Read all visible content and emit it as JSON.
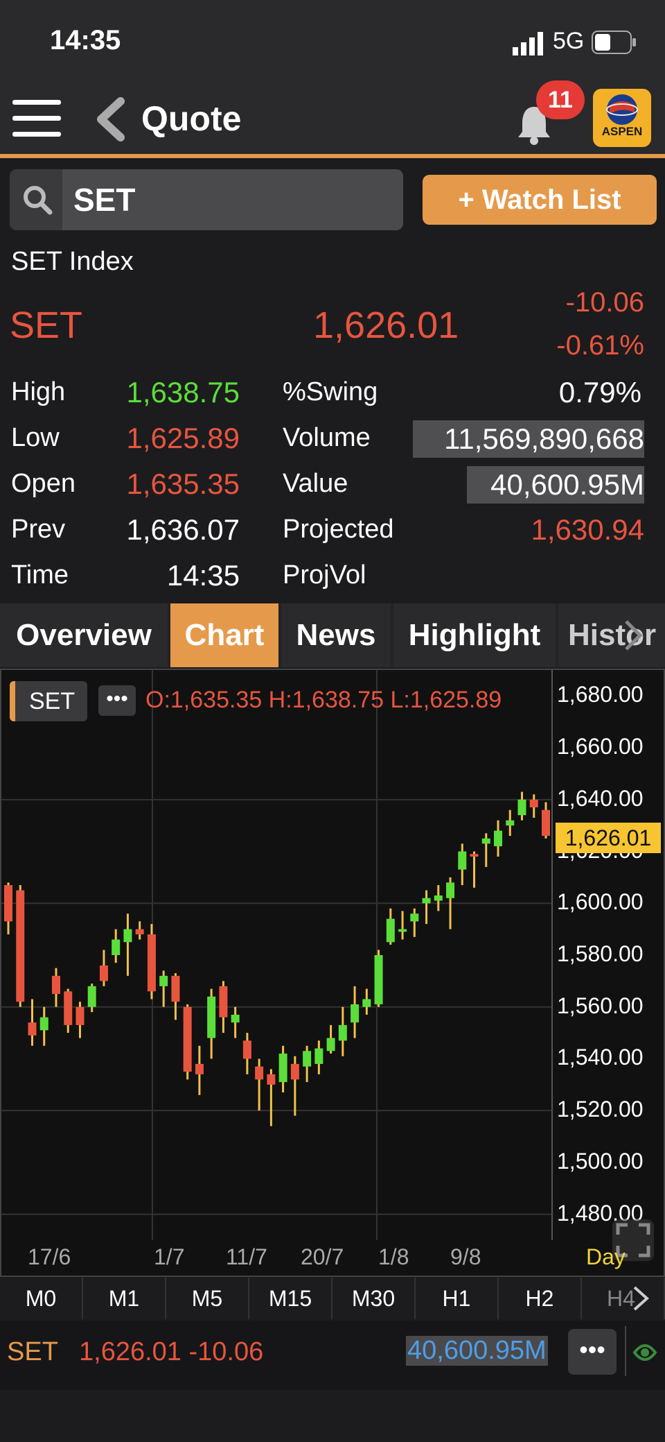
{
  "status_bar": {
    "time": "14:35",
    "network": "5G"
  },
  "header": {
    "title": "Quote",
    "notification_count": "11",
    "brand": "ASPEN"
  },
  "search": {
    "value": "SET"
  },
  "watchlist_button": "+ Watch List",
  "quote": {
    "name": "SET Index",
    "symbol": "SET",
    "last": "1,626.01",
    "change": "-10.06",
    "change_pct": "-0.61%",
    "rows": [
      {
        "label": "High",
        "value": "1,638.75",
        "label2": "%Swing",
        "value2": "0.79%"
      },
      {
        "label": "Low",
        "value": "1,625.89",
        "label2": "Volume",
        "value2": "11,569,890,668"
      },
      {
        "label": "Open",
        "value": "1,635.35",
        "label2": "Value",
        "value2": "40,600.95M"
      },
      {
        "label": "Prev",
        "value": "1,636.07",
        "label2": "Projected",
        "value2": "1,630.94"
      },
      {
        "label": "Time",
        "value": "14:35",
        "label2": "ProjVol",
        "value2": ""
      }
    ]
  },
  "tabs": [
    {
      "label": "Overview",
      "active": false
    },
    {
      "label": "Chart",
      "active": true
    },
    {
      "label": "News",
      "active": false
    },
    {
      "label": "Highlight",
      "active": false
    },
    {
      "label": "Histor",
      "active": false
    }
  ],
  "chart": {
    "symbol_chip": "SET",
    "ohlc_text": "O:1,635.35  H:1,638.75  L:1,625.89",
    "last_price_label": "1,626.01",
    "interval_label": "Day"
  },
  "chart_data": {
    "type": "candlestick",
    "yticks": [
      "1,680.00",
      "1,660.00",
      "1,640.00",
      "1,620.00",
      "1,600.00",
      "1,580.00",
      "1,560.00",
      "1,540.00",
      "1,520.00",
      "1,500.00",
      "1,480.00"
    ],
    "ylim": [
      1470,
      1690
    ],
    "xticks": [
      "17/6",
      "1/7",
      "11/7",
      "20/7",
      "1/8",
      "9/8"
    ],
    "candles": [
      [
        1607,
        1593,
        1608,
        1588
      ],
      [
        1605,
        1562,
        1607,
        1560
      ],
      [
        1554,
        1549,
        1563,
        1545
      ],
      [
        1551,
        1556,
        1560,
        1545
      ],
      [
        1572,
        1565,
        1575,
        1560
      ],
      [
        1566,
        1553,
        1567,
        1550
      ],
      [
        1560,
        1553,
        1562,
        1548
      ],
      [
        1560,
        1568,
        1569,
        1558
      ],
      [
        1576,
        1570,
        1582,
        1568
      ],
      [
        1580,
        1586,
        1590,
        1577
      ],
      [
        1585,
        1590,
        1596,
        1572
      ],
      [
        1590,
        1588,
        1593,
        1586
      ],
      [
        1588,
        1566,
        1592,
        1563
      ],
      [
        1568,
        1572,
        1574,
        1560
      ],
      [
        1572,
        1562,
        1573,
        1555
      ],
      [
        1560,
        1535,
        1561,
        1532
      ],
      [
        1538,
        1534,
        1545,
        1526
      ],
      [
        1548,
        1564,
        1567,
        1540
      ],
      [
        1568,
        1556,
        1570,
        1550
      ],
      [
        1554,
        1557,
        1560,
        1548
      ],
      [
        1547,
        1540,
        1550,
        1534
      ],
      [
        1537,
        1532,
        1540,
        1520
      ],
      [
        1534,
        1530,
        1536,
        1514
      ],
      [
        1531,
        1542,
        1545,
        1527
      ],
      [
        1538,
        1532,
        1541,
        1518
      ],
      [
        1537,
        1543,
        1545,
        1531
      ],
      [
        1538,
        1544,
        1547,
        1534
      ],
      [
        1543,
        1548,
        1553,
        1542
      ],
      [
        1547,
        1553,
        1560,
        1541
      ],
      [
        1554,
        1561,
        1568,
        1548
      ],
      [
        1560,
        1563,
        1567,
        1557
      ],
      [
        1561,
        1580,
        1582,
        1560
      ],
      [
        1585,
        1594,
        1598,
        1584
      ],
      [
        1589,
        1590,
        1597,
        1586
      ],
      [
        1593,
        1596,
        1598,
        1587
      ],
      [
        1600,
        1602,
        1605,
        1592
      ],
      [
        1601,
        1603,
        1607,
        1597
      ],
      [
        1602,
        1608,
        1610,
        1590
      ],
      [
        1613,
        1620,
        1623,
        1607
      ],
      [
        1619,
        1618,
        1620,
        1606
      ],
      [
        1623,
        1625,
        1627,
        1614
      ],
      [
        1622,
        1628,
        1632,
        1618
      ],
      [
        1630,
        1632,
        1636,
        1626
      ],
      [
        1634,
        1640,
        1643,
        1632
      ],
      [
        1640,
        1637,
        1642,
        1633
      ],
      [
        1636,
        1626,
        1639,
        1625
      ]
    ]
  },
  "timeframes": [
    "M0",
    "M1",
    "M5",
    "M15",
    "M30",
    "H1",
    "H2",
    "H4"
  ],
  "bottom": {
    "symbol": "SET",
    "price_change": "1,626.01 -10.06",
    "value": "40,600.95M"
  },
  "colors": {
    "accent": "#e59a4b",
    "down": "#e8553f",
    "up": "#5bde3a",
    "last_price": "#f7c532"
  }
}
